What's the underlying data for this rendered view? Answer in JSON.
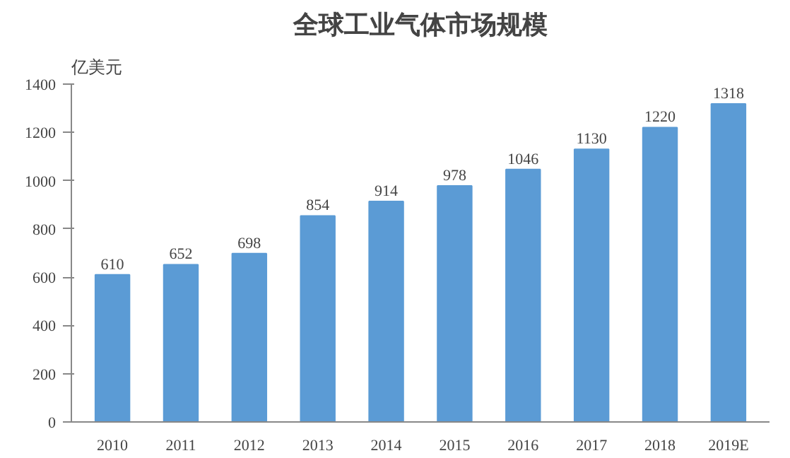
{
  "chart_data": {
    "type": "bar",
    "title": "全球工业气体市场规模",
    "ylabel": "亿美元",
    "categories": [
      "2010",
      "2011",
      "2012",
      "2013",
      "2014",
      "2015",
      "2016",
      "2017",
      "2018",
      "2019E"
    ],
    "values": [
      610,
      652,
      698,
      854,
      914,
      978,
      1046,
      1130,
      1220,
      1318
    ],
    "color": "#5b9bd5",
    "ylim": [
      0,
      1400
    ],
    "yticks": [
      0,
      200,
      400,
      600,
      800,
      1000,
      1200,
      1400
    ],
    "grid": false,
    "data_labels": true
  }
}
